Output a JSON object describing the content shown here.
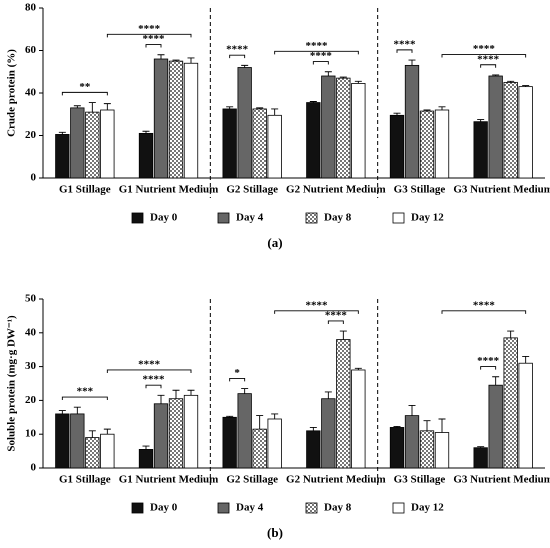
{
  "chart_data": [
    {
      "type": "bar",
      "ylabel": "Crude protein (%)",
      "label": "(a)",
      "categories": [
        "G1 Stillage",
        "G1 Nutrient Medium",
        "G2 Stillage",
        "G2 Nutrient Medium",
        "G3 Stillage",
        "G3 Nutrient Medium"
      ],
      "series": [
        {
          "name": "Day 0",
          "color": "#111111",
          "values": [
            20.5,
            21,
            32.5,
            35.5,
            29.5,
            26.5
          ],
          "errors": [
            1,
            1,
            1,
            0.5,
            1,
            1
          ]
        },
        {
          "name": "Day 4",
          "color": "#666666",
          "values": [
            33,
            56,
            52,
            48,
            53,
            48
          ],
          "errors": [
            1,
            2,
            1,
            2,
            2.5,
            0.5
          ]
        },
        {
          "name": "Day 8",
          "color": "#bbbbbb",
          "pattern": "checker",
          "values": [
            31,
            55,
            32.5,
            47,
            31.5,
            45
          ],
          "errors": [
            4.5,
            0.5,
            0.5,
            0.5,
            0.5,
            0.5
          ]
        },
        {
          "name": "Day 12",
          "color": "#ffffff",
          "values": [
            32,
            54,
            29.5,
            44.5,
            32,
            43
          ],
          "errors": [
            3,
            2.5,
            3,
            1,
            1.5,
            0.5
          ]
        }
      ],
      "ylim": [
        0,
        80
      ],
      "yticks": [
        0,
        20,
        40,
        60,
        80
      ],
      "annotations": [
        {
          "text": "**",
          "from": [
            "G1 Stillage",
            "Day 0"
          ],
          "to": [
            "G1 Stillage",
            "Day 12"
          ]
        },
        {
          "text": "****",
          "from": [
            "G1 Stillage",
            "Day 12"
          ],
          "to": [
            "G1 Nutrient Medium",
            "Day 12"
          ]
        },
        {
          "text": "****",
          "from": [
            "G1 Nutrient Medium",
            "Day 0"
          ],
          "to": [
            "G1 Nutrient Medium",
            "Day 4"
          ]
        },
        {
          "text": "****",
          "from": [
            "G2 Stillage",
            "Day 0"
          ],
          "to": [
            "G2 Stillage",
            "Day 4"
          ]
        },
        {
          "text": "****",
          "from": [
            "G2 Stillage",
            "Day 12"
          ],
          "to": [
            "G2 Nutrient Medium",
            "Day 12"
          ]
        },
        {
          "text": "****",
          "from": [
            "G2 Nutrient Medium",
            "Day 0"
          ],
          "to": [
            "G2 Nutrient Medium",
            "Day 4"
          ]
        },
        {
          "text": "****",
          "from": [
            "G3 Stillage",
            "Day 0"
          ],
          "to": [
            "G3 Stillage",
            "Day 4"
          ]
        },
        {
          "text": "****",
          "from": [
            "G3 Stillage",
            "Day 12"
          ],
          "to": [
            "G3 Nutrient Medium",
            "Day 12"
          ]
        },
        {
          "text": "****",
          "from": [
            "G3 Nutrient Medium",
            "Day 0"
          ],
          "to": [
            "G3 Nutrient Medium",
            "Day 4"
          ]
        }
      ]
    },
    {
      "type": "bar",
      "ylabel": "Soluble protein (mg·g DW⁻¹)",
      "label": "(b)",
      "categories": [
        "G1 Stillage",
        "G1 Nutrient Medium",
        "G2 Stillage",
        "G2 Nutrient Medium",
        "G3 Stillage",
        "G3 Nutrient Medium"
      ],
      "series": [
        {
          "name": "Day 0",
          "color": "#111111",
          "values": [
            16,
            5.5,
            15,
            11,
            12,
            6
          ],
          "errors": [
            1,
            1,
            0.3,
            1,
            0.3,
            0.3
          ]
        },
        {
          "name": "Day 4",
          "color": "#666666",
          "values": [
            16,
            19,
            22,
            20.5,
            15.5,
            24.5
          ],
          "errors": [
            2,
            2.5,
            1.5,
            2,
            3,
            2.5
          ]
        },
        {
          "name": "Day 8",
          "color": "#bbbbbb",
          "pattern": "checker",
          "values": [
            9,
            20.5,
            11.5,
            38,
            11,
            38.5
          ],
          "errors": [
            2,
            2.5,
            4,
            2.5,
            3,
            2
          ]
        },
        {
          "name": "Day 12",
          "color": "#ffffff",
          "values": [
            10,
            21.5,
            14.5,
            29,
            10.5,
            31
          ],
          "errors": [
            1.5,
            1.5,
            1.5,
            0.5,
            4,
            2
          ]
        }
      ],
      "ylim": [
        0,
        50
      ],
      "yticks": [
        0,
        10,
        20,
        30,
        40,
        50
      ],
      "annotations": [
        {
          "text": "***",
          "from": [
            "G1 Stillage",
            "Day 0"
          ],
          "to": [
            "G1 Stillage",
            "Day 12"
          ]
        },
        {
          "text": "****",
          "from": [
            "G1 Stillage",
            "Day 12"
          ],
          "to": [
            "G1 Nutrient Medium",
            "Day 12"
          ]
        },
        {
          "text": "****",
          "from": [
            "G1 Nutrient Medium",
            "Day 0"
          ],
          "to": [
            "G1 Nutrient Medium",
            "Day 4"
          ]
        },
        {
          "text": "*",
          "from": [
            "G2 Stillage",
            "Day 0"
          ],
          "to": [
            "G2 Stillage",
            "Day 4"
          ]
        },
        {
          "text": "****",
          "from": [
            "G2 Stillage",
            "Day 12"
          ],
          "to": [
            "G2 Nutrient Medium",
            "Day 12"
          ]
        },
        {
          "text": "****",
          "from": [
            "G2 Nutrient Medium",
            "Day 4"
          ],
          "to": [
            "G2 Nutrient Medium",
            "Day 8"
          ]
        },
        {
          "text": "****",
          "from": [
            "G3 Stillage",
            "Day 12"
          ],
          "to": [
            "G3 Nutrient Medium",
            "Day 12"
          ]
        },
        {
          "text": "****",
          "from": [
            "G3 Nutrient Medium",
            "Day 0"
          ],
          "to": [
            "G3 Nutrient Medium",
            "Day 4"
          ]
        }
      ]
    }
  ]
}
